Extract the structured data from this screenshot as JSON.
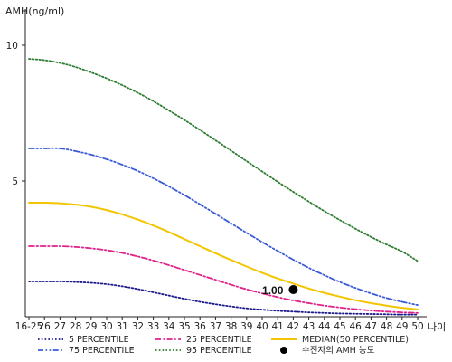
{
  "chart_data": {
    "type": "line",
    "ylabel": "AMH(ng/ml)",
    "xlabel": "나이",
    "ylim": [
      0,
      11
    ],
    "y_ticks": [
      {
        "value": 5,
        "label": "5"
      },
      {
        "value": 10,
        "label": "10"
      }
    ],
    "x_tick_labels": [
      "16-25",
      "26",
      "27",
      "28",
      "29",
      "30",
      "31",
      "32",
      "33",
      "34",
      "35",
      "36",
      "37",
      "38",
      "39",
      "40",
      "41",
      "42",
      "43",
      "44",
      "45",
      "46",
      "47",
      "48",
      "49",
      "50"
    ],
    "series": [
      {
        "name": "5 PERCENTILE",
        "color": "#1a1a8c",
        "dash": "dotted",
        "values": [
          1.3,
          1.3,
          1.3,
          1.28,
          1.25,
          1.2,
          1.12,
          1.02,
          0.9,
          0.78,
          0.66,
          0.55,
          0.46,
          0.38,
          0.31,
          0.26,
          0.22,
          0.19,
          0.16,
          0.14,
          0.12,
          0.11,
          0.1,
          0.09,
          0.08,
          0.08
        ]
      },
      {
        "name": "25 PERCENTILE",
        "color": "#e0218a",
        "dash": "dashdot",
        "values": [
          2.6,
          2.6,
          2.6,
          2.57,
          2.52,
          2.45,
          2.35,
          2.22,
          2.07,
          1.9,
          1.72,
          1.54,
          1.36,
          1.18,
          1.01,
          0.86,
          0.72,
          0.6,
          0.5,
          0.41,
          0.34,
          0.28,
          0.23,
          0.19,
          0.16,
          0.14
        ]
      },
      {
        "name": "MEDIAN(50 PERCENTILE)",
        "color": "#f2c500",
        "dash": "solid",
        "values": [
          4.2,
          4.2,
          4.18,
          4.13,
          4.05,
          3.93,
          3.77,
          3.58,
          3.36,
          3.12,
          2.86,
          2.6,
          2.34,
          2.09,
          1.85,
          1.62,
          1.41,
          1.22,
          1.04,
          0.88,
          0.74,
          0.61,
          0.5,
          0.41,
          0.33,
          0.27
        ]
      },
      {
        "name": "75 PERCENTILE",
        "color": "#3a5bd6",
        "dash": "dashdotdot",
        "values": [
          6.2,
          6.2,
          6.2,
          6.1,
          5.97,
          5.8,
          5.6,
          5.37,
          5.1,
          4.8,
          4.48,
          4.14,
          3.79,
          3.44,
          3.09,
          2.75,
          2.42,
          2.1,
          1.8,
          1.53,
          1.28,
          1.06,
          0.86,
          0.69,
          0.55,
          0.43
        ]
      },
      {
        "name": "95 PERCENTILE",
        "color": "#2e7d32",
        "dash": "dotted",
        "values": [
          9.5,
          9.45,
          9.35,
          9.2,
          9.0,
          8.78,
          8.53,
          8.25,
          7.94,
          7.6,
          7.25,
          6.88,
          6.5,
          6.12,
          5.73,
          5.35,
          4.97,
          4.6,
          4.24,
          3.89,
          3.56,
          3.24,
          2.94,
          2.66,
          2.4,
          2.05
        ]
      }
    ],
    "marker": {
      "name": "수진자의 AMH 농도",
      "x_label": "42",
      "value": 1.0,
      "label": "1.00",
      "color": "#000000"
    },
    "legend_position": "bottom"
  }
}
